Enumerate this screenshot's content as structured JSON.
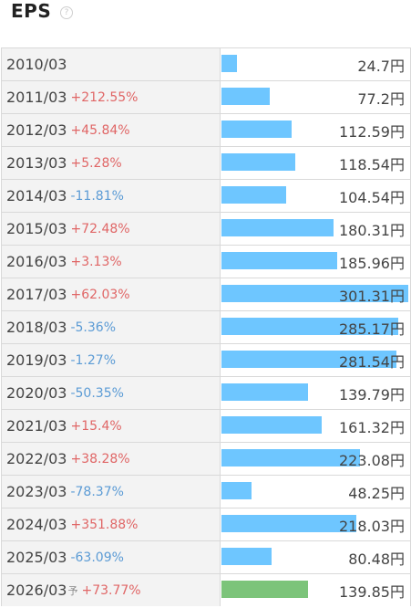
{
  "header": {
    "title": "EPS",
    "help_icon": "question-circle-icon"
  },
  "colors": {
    "actual_bar": "#6ec6ff",
    "forecast_bar": "#7cc47a",
    "positive": "#e06666",
    "negative": "#5b9bd5"
  },
  "chart_data": {
    "type": "bar",
    "orientation": "horizontal",
    "title": "EPS",
    "unit": "円",
    "categories": [
      "2010/03",
      "2011/03",
      "2012/03",
      "2013/03",
      "2014/03",
      "2015/03",
      "2016/03",
      "2017/03",
      "2018/03",
      "2019/03",
      "2020/03",
      "2021/03",
      "2022/03",
      "2023/03",
      "2024/03",
      "2025/03",
      "2026/03"
    ],
    "values": [
      24.7,
      77.2,
      112.59,
      118.54,
      104.54,
      180.31,
      185.96,
      301.31,
      285.17,
      281.54,
      139.79,
      161.32,
      223.08,
      48.25,
      218.03,
      80.48,
      139.85
    ],
    "xlim": [
      0,
      301.31
    ]
  },
  "rows": [
    {
      "period": "2010/03",
      "change": "",
      "value": "24.7円",
      "forecast": false
    },
    {
      "period": "2011/03",
      "change": "+212.55%",
      "value": "77.2円",
      "forecast": false
    },
    {
      "period": "2012/03",
      "change": "+45.84%",
      "value": "112.59円",
      "forecast": false
    },
    {
      "period": "2013/03",
      "change": "+5.28%",
      "value": "118.54円",
      "forecast": false
    },
    {
      "period": "2014/03",
      "change": "-11.81%",
      "value": "104.54円",
      "forecast": false
    },
    {
      "period": "2015/03",
      "change": "+72.48%",
      "value": "180.31円",
      "forecast": false
    },
    {
      "period": "2016/03",
      "change": "+3.13%",
      "value": "185.96円",
      "forecast": false
    },
    {
      "period": "2017/03",
      "change": "+62.03%",
      "value": "301.31円",
      "forecast": false
    },
    {
      "period": "2018/03",
      "change": "-5.36%",
      "value": "285.17円",
      "forecast": false
    },
    {
      "period": "2019/03",
      "change": "-1.27%",
      "value": "281.54円",
      "forecast": false
    },
    {
      "period": "2020/03",
      "change": "-50.35%",
      "value": "139.79円",
      "forecast": false
    },
    {
      "period": "2021/03",
      "change": "+15.4%",
      "value": "161.32円",
      "forecast": false
    },
    {
      "period": "2022/03",
      "change": "+38.28%",
      "value": "223.08円",
      "forecast": false
    },
    {
      "period": "2023/03",
      "change": "-78.37%",
      "value": "48.25円",
      "forecast": false
    },
    {
      "period": "2024/03",
      "change": "+351.88%",
      "value": "218.03円",
      "forecast": false
    },
    {
      "period": "2025/03",
      "change": "-63.09%",
      "value": "80.48円",
      "forecast": false
    },
    {
      "period": "2026/03",
      "change": "+73.77%",
      "value": "139.85円",
      "forecast": true,
      "forecast_mark": "予"
    }
  ]
}
